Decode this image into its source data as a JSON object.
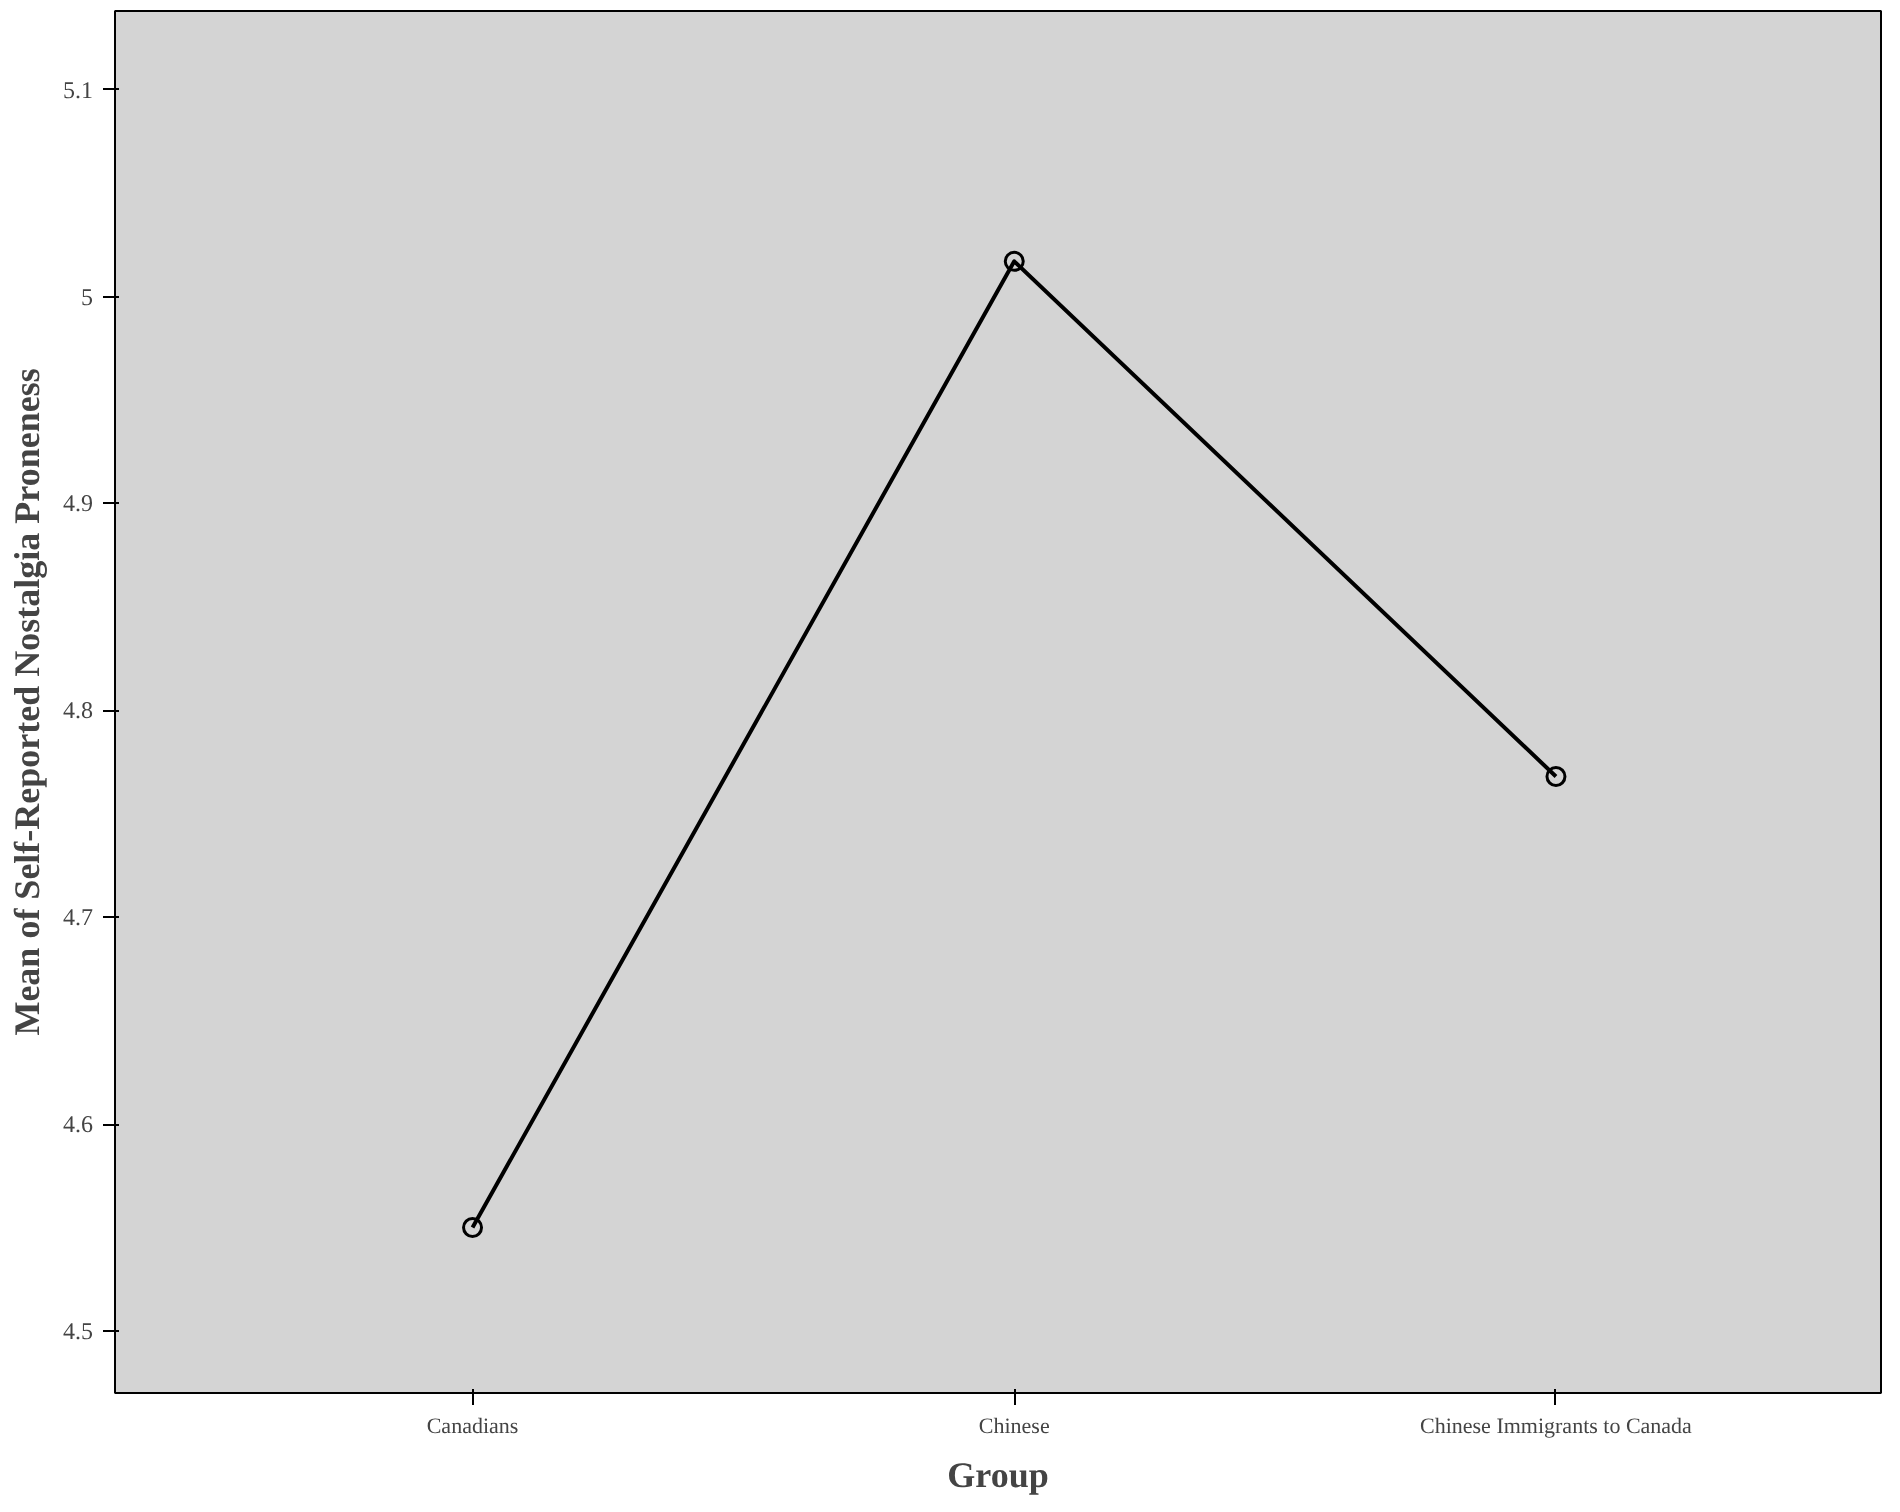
{
  "chart_data": {
    "type": "line",
    "xlabel": "Group",
    "ylabel": "Mean of Self-Reported Nostalgia Proneness",
    "categories": [
      "Canadians",
      "Chinese",
      "Chinese Immigrants to Canada"
    ],
    "series": [
      {
        "color": "#000000",
        "values": [
          4.55,
          5.017,
          4.768
        ]
      }
    ],
    "ylim": [
      4.47,
      5.138
    ],
    "yticks": [
      4.5,
      4.6,
      4.7,
      4.8,
      4.9,
      {
        "value": 5.0,
        "label": "5"
      },
      5.1
    ],
    "grid": false,
    "marker": "circle",
    "line_style": "solid"
  }
}
